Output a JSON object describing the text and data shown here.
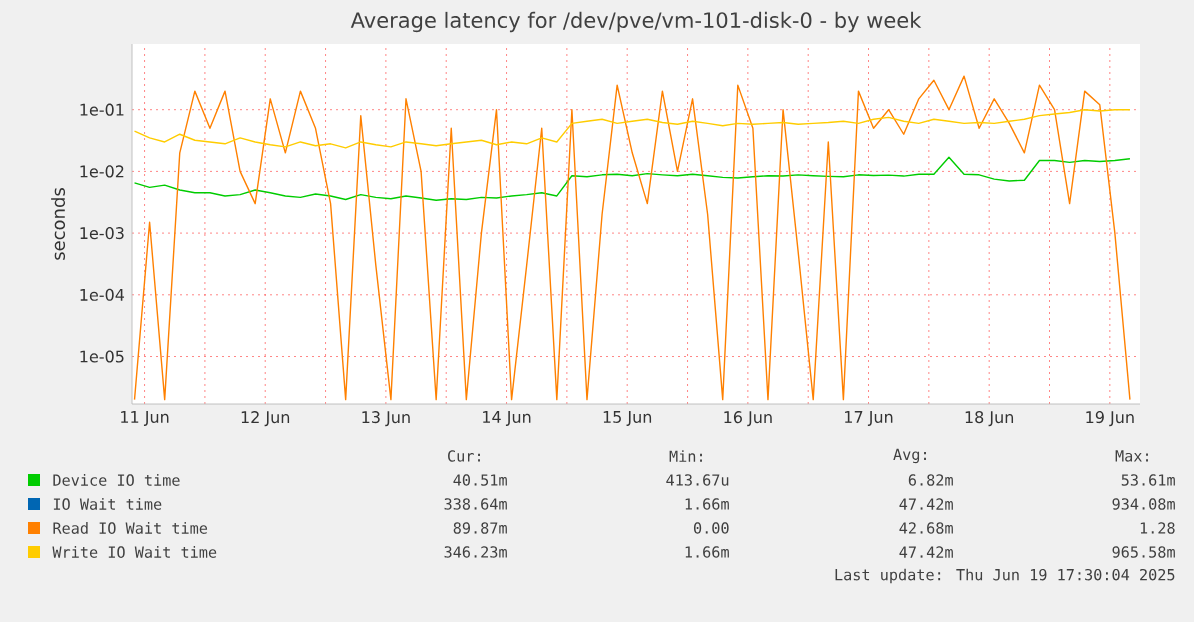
{
  "chart_data": {
    "type": "line",
    "title": "Average latency for /dev/pve/vm-101-disk-0 - by week",
    "ylabel": "seconds",
    "log": true,
    "grid": true,
    "legend": "bottom",
    "marker": "none",
    "line_style": "solid",
    "xlim": [
      "2025-06-11T09:30",
      "2025-06-19T18:00"
    ],
    "ylim": [
      1.7e-06,
      1.16
    ],
    "xticks": [
      {
        "value": "2025-06-11T12:00",
        "label": "11 Jun"
      },
      {
        "value": "2025-06-12T00:00",
        "label": null
      },
      {
        "value": "2025-06-12T12:00",
        "label": "12 Jun"
      },
      {
        "value": "2025-06-13T00:00",
        "label": null
      },
      {
        "value": "2025-06-13T12:00",
        "label": "13 Jun"
      },
      {
        "value": "2025-06-14T00:00",
        "label": null
      },
      {
        "value": "2025-06-14T12:00",
        "label": "14 Jun"
      },
      {
        "value": "2025-06-15T00:00",
        "label": null
      },
      {
        "value": "2025-06-15T12:00",
        "label": "15 Jun"
      },
      {
        "value": "2025-06-16T00:00",
        "label": null
      },
      {
        "value": "2025-06-16T12:00",
        "label": "16 Jun"
      },
      {
        "value": "2025-06-17T00:00",
        "label": null
      },
      {
        "value": "2025-06-17T12:00",
        "label": "17 Jun"
      },
      {
        "value": "2025-06-18T00:00",
        "label": null
      },
      {
        "value": "2025-06-18T12:00",
        "label": "18 Jun"
      },
      {
        "value": "2025-06-19T00:00",
        "label": null
      },
      {
        "value": "2025-06-19T12:00",
        "label": "19 Jun"
      }
    ],
    "yticks": [
      {
        "value": 1e-05,
        "label": "1e-05"
      },
      {
        "value": 0.0001,
        "label": "1e-04"
      },
      {
        "value": 0.001,
        "label": "1e-03"
      },
      {
        "value": 0.01,
        "label": "1e-02"
      },
      {
        "value": 0.1,
        "label": "1e-01"
      }
    ],
    "x": [
      "2025-06-11T10:00",
      "2025-06-11T13:00",
      "2025-06-11T16:00",
      "2025-06-11T19:00",
      "2025-06-11T22:00",
      "2025-06-12T01:00",
      "2025-06-12T04:00",
      "2025-06-12T07:00",
      "2025-06-12T10:00",
      "2025-06-12T13:00",
      "2025-06-12T16:00",
      "2025-06-12T19:00",
      "2025-06-12T22:00",
      "2025-06-13T01:00",
      "2025-06-13T04:00",
      "2025-06-13T07:00",
      "2025-06-13T10:00",
      "2025-06-13T13:00",
      "2025-06-13T16:00",
      "2025-06-13T19:00",
      "2025-06-13T22:00",
      "2025-06-14T01:00",
      "2025-06-14T04:00",
      "2025-06-14T07:00",
      "2025-06-14T10:00",
      "2025-06-14T13:00",
      "2025-06-14T16:00",
      "2025-06-14T19:00",
      "2025-06-14T22:00",
      "2025-06-15T01:00",
      "2025-06-15T04:00",
      "2025-06-15T07:00",
      "2025-06-15T10:00",
      "2025-06-15T13:00",
      "2025-06-15T16:00",
      "2025-06-15T19:00",
      "2025-06-15T22:00",
      "2025-06-16T01:00",
      "2025-06-16T04:00",
      "2025-06-16T07:00",
      "2025-06-16T10:00",
      "2025-06-16T13:00",
      "2025-06-16T16:00",
      "2025-06-16T19:00",
      "2025-06-16T22:00",
      "2025-06-17T01:00",
      "2025-06-17T04:00",
      "2025-06-17T07:00",
      "2025-06-17T10:00",
      "2025-06-17T13:00",
      "2025-06-17T16:00",
      "2025-06-17T19:00",
      "2025-06-17T22:00",
      "2025-06-18T01:00",
      "2025-06-18T04:00",
      "2025-06-18T07:00",
      "2025-06-18T10:00",
      "2025-06-18T13:00",
      "2025-06-18T16:00",
      "2025-06-18T19:00",
      "2025-06-18T22:00",
      "2025-06-19T01:00",
      "2025-06-19T04:00",
      "2025-06-19T07:00",
      "2025-06-19T10:00",
      "2025-06-19T13:00",
      "2025-06-19T16:00"
    ],
    "series": [
      {
        "name": "Device IO time",
        "color": "#00cc00",
        "values": [
          0.0065,
          0.0055,
          0.006,
          0.005,
          0.0045,
          0.0045,
          0.004,
          0.0042,
          0.005,
          0.0045,
          0.004,
          0.0038,
          0.0043,
          0.004,
          0.0035,
          0.0042,
          0.0038,
          0.0036,
          0.004,
          0.0037,
          0.0034,
          0.0036,
          0.0035,
          0.0038,
          0.0037,
          0.004,
          0.0042,
          0.0045,
          0.004,
          0.0085,
          0.0082,
          0.0088,
          0.009,
          0.0085,
          0.0092,
          0.0088,
          0.0085,
          0.009,
          0.0085,
          0.008,
          0.0078,
          0.0082,
          0.0085,
          0.0084,
          0.0088,
          0.0085,
          0.0083,
          0.0082,
          0.0088,
          0.0086,
          0.0087,
          0.0084,
          0.009,
          0.009,
          0.017,
          0.009,
          0.0088,
          0.0075,
          0.007,
          0.0072,
          0.015,
          0.015,
          0.014,
          0.015,
          0.0145,
          0.015,
          0.016
        ]
      },
      {
        "name": "IO Wait time",
        "color": "#0066b3",
        "values": [
          null,
          null,
          null,
          null,
          null,
          null,
          null,
          null,
          null,
          null,
          null,
          null,
          null,
          null,
          null,
          null,
          null,
          null,
          null,
          null,
          null,
          null,
          null,
          null,
          null,
          null,
          null,
          null,
          null,
          null,
          null,
          null,
          null,
          null,
          null,
          null,
          null,
          null,
          null,
          null,
          null,
          null,
          null,
          null,
          null,
          null,
          null,
          null,
          null,
          null,
          null,
          null,
          null,
          null,
          null,
          null,
          null,
          null,
          null,
          null,
          null,
          null,
          null,
          null,
          null,
          null,
          null
        ]
      },
      {
        "name": "Read IO Wait time",
        "color": "#ff8000",
        "values": [
          2e-06,
          0.0015,
          2e-06,
          0.02,
          0.2,
          0.05,
          0.2,
          0.01,
          0.003,
          0.15,
          0.02,
          0.2,
          0.05,
          0.003,
          2e-06,
          0.08,
          0.0003,
          2e-06,
          0.15,
          0.01,
          2e-06,
          0.05,
          2e-06,
          0.001,
          0.1,
          2e-06,
          0.0003,
          0.05,
          2e-06,
          0.1,
          2e-06,
          0.002,
          0.25,
          0.02,
          0.003,
          0.2,
          0.01,
          0.15,
          0.002,
          2e-06,
          0.25,
          0.05,
          2e-06,
          0.1,
          0.0005,
          2e-06,
          0.03,
          2e-06,
          0.2,
          0.05,
          0.1,
          0.04,
          0.15,
          0.3,
          0.1,
          0.35,
          0.05,
          0.15,
          0.06,
          0.02,
          0.25,
          0.1,
          0.003,
          0.2,
          0.12,
          0.001,
          2e-06
        ]
      },
      {
        "name": "Write IO Wait time",
        "color": "#ffcc00",
        "values": [
          0.045,
          0.035,
          0.03,
          0.04,
          0.032,
          0.03,
          0.028,
          0.035,
          0.03,
          0.027,
          0.025,
          0.03,
          0.026,
          0.028,
          0.024,
          0.03,
          0.027,
          0.025,
          0.03,
          0.028,
          0.026,
          0.028,
          0.03,
          0.032,
          0.027,
          0.03,
          0.028,
          0.035,
          0.03,
          0.06,
          0.065,
          0.07,
          0.06,
          0.065,
          0.07,
          0.062,
          0.058,
          0.065,
          0.06,
          0.055,
          0.06,
          0.058,
          0.06,
          0.062,
          0.058,
          0.06,
          0.062,
          0.065,
          0.06,
          0.07,
          0.075,
          0.065,
          0.06,
          0.07,
          0.065,
          0.06,
          0.062,
          0.06,
          0.065,
          0.07,
          0.08,
          0.085,
          0.09,
          0.1,
          0.095,
          0.1,
          0.1
        ]
      }
    ],
    "annotations": [
      "Cur:",
      "Min:",
      "Avg:",
      "Max:",
      "40.51m",
      "413.67u",
      "6.82m",
      "53.61m",
      "338.64m",
      "1.66m",
      "47.42m",
      "934.08m",
      "89.87m",
      "0.00",
      "42.68m",
      "1.28",
      "346.23m",
      "1.66m",
      "47.42m",
      "965.58m",
      "Last update: Thu Jun 19 17:30:04 2025"
    ]
  }
}
